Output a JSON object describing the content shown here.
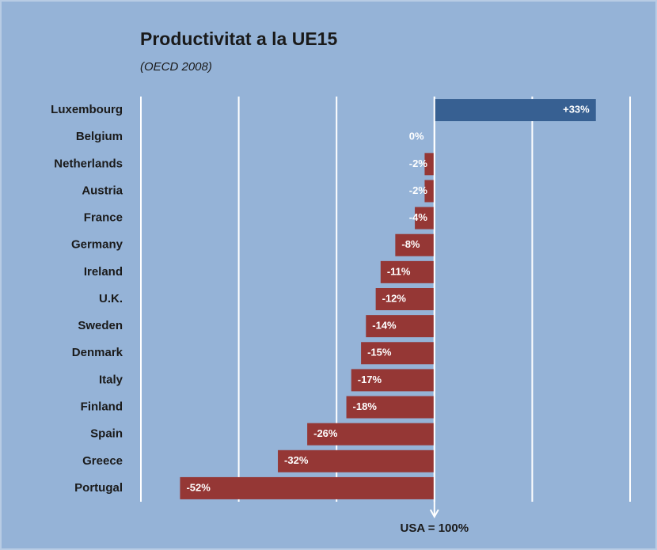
{
  "chart_data": {
    "type": "bar",
    "orientation": "horizontal",
    "title": "Productivitat a la UE15",
    "subtitle": "(OECD 2008)",
    "annotation": "USA = 100%",
    "categories": [
      "Luxembourg",
      "Belgium",
      "Netherlands",
      "Austria",
      "France",
      "Germany",
      "Ireland",
      "U.K.",
      "Sweden",
      "Denmark",
      "Italy",
      "Finland",
      "Spain",
      "Greece",
      "Portugal"
    ],
    "values": [
      33,
      0,
      -2,
      -2,
      -4,
      -8,
      -11,
      -12,
      -14,
      -15,
      -17,
      -18,
      -26,
      -32,
      -52
    ],
    "value_labels": [
      "+33%",
      "0%",
      "-2%",
      "-2%",
      "-4%",
      "-8%",
      "-11%",
      "-12%",
      "-14%",
      "-15%",
      "-17%",
      "-18%",
      "-26%",
      "-32%",
      "-52%"
    ],
    "positive_color": "#376092",
    "negative_color": "#953735",
    "xlim": [
      -60,
      40
    ],
    "xticks": [
      -60,
      -40,
      -20,
      0,
      20,
      40
    ],
    "grid": true
  }
}
